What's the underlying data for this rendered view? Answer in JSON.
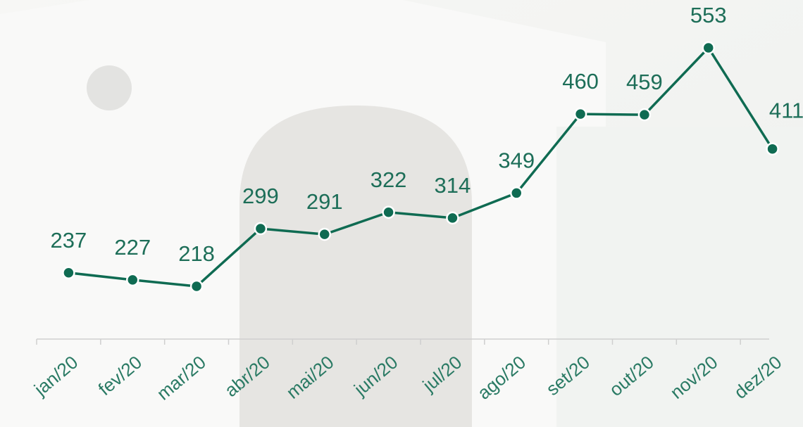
{
  "chart_data": {
    "type": "line",
    "categories": [
      "jan/20",
      "fev/20",
      "mar/20",
      "abr/20",
      "mai/20",
      "jun/20",
      "jul/20",
      "ago/20",
      "set/20",
      "out/20",
      "nov/20",
      "dez/20"
    ],
    "values": [
      237,
      227,
      218,
      299,
      291,
      322,
      314,
      349,
      460,
      459,
      553,
      411
    ],
    "color": "#0f6b52"
  }
}
